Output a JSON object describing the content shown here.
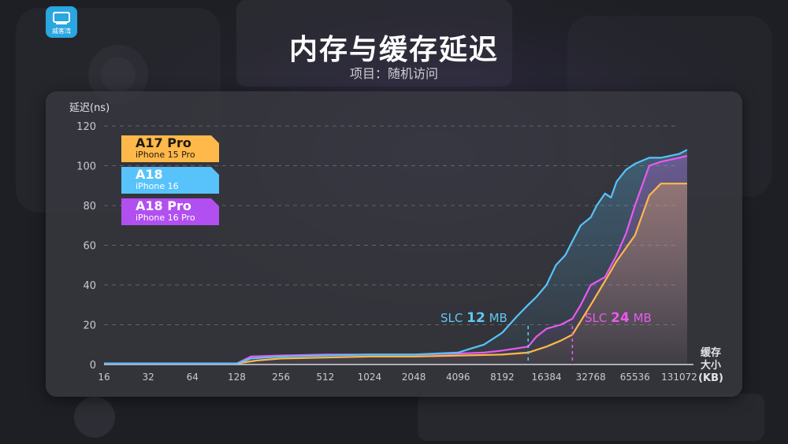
{
  "header": {
    "logo_text": "威客湾",
    "title": "内存与缓存延迟",
    "subtitle": "项目：随机访问"
  },
  "colors": {
    "a17pro": "#ffb84a",
    "a18": "#58c3fb",
    "a18pro": "#e85af0",
    "slc12": "#5fc8f5",
    "slc24": "#e85af0"
  },
  "legend": [
    {
      "name": "A17 Pro",
      "sub": "iPhone 15 Pro"
    },
    {
      "name": "A18",
      "sub": "iPhone 16"
    },
    {
      "name": "A18 Pro",
      "sub": "iPhone 16 Pro"
    }
  ],
  "annotations": {
    "slc12": {
      "prefix": "SLC ",
      "value": "12",
      "suffix": " MB"
    },
    "slc24": {
      "prefix": "SLC ",
      "value": "24",
      "suffix": " MB"
    }
  },
  "chart_data": {
    "type": "line",
    "ylabel": "延迟(ns)",
    "xlabel_lines": [
      "缓存",
      "大小",
      "(KB)"
    ],
    "x_ticks": [
      "16",
      "32",
      "64",
      "128",
      "256",
      "512",
      "1024",
      "2048",
      "4096",
      "8192",
      "16384",
      "32768",
      "65536",
      "131072"
    ],
    "y_ticks": [
      "0",
      "20",
      "40",
      "60",
      "80",
      "100",
      "120"
    ],
    "ylim": [
      0,
      120
    ],
    "x_scale": "log2",
    "xlim": [
      16,
      131072
    ],
    "grid": true,
    "legend_position": "top-left",
    "markers": [
      {
        "label": "SLC 12 MB",
        "x": 12288
      },
      {
        "label": "SLC 24 MB",
        "x": 24576
      }
    ],
    "series": [
      {
        "name": "A17 Pro",
        "sub": "iPhone 15 Pro",
        "x": [
          16,
          128,
          176,
          256,
          512,
          1024,
          2048,
          4096,
          8192,
          12288,
          16384,
          20480,
          24576,
          32768,
          40960,
          49152,
          65536,
          81920,
          98304,
          131072,
          180000
        ],
        "y": [
          0.5,
          0.5,
          2,
          3,
          3.5,
          4,
          4,
          4.5,
          5,
          6,
          9,
          12,
          15,
          30,
          42,
          52,
          65,
          85,
          91,
          91,
          91
        ]
      },
      {
        "name": "A18",
        "sub": "iPhone 16",
        "x": [
          16,
          128,
          160,
          256,
          512,
          1024,
          2048,
          4096,
          5000,
          6144,
          8192,
          10240,
          12288,
          14000,
          16384,
          19000,
          22000,
          24576,
          28000,
          32768,
          36000,
          40960,
          45000,
          49152,
          57000,
          65536,
          81920,
          98304,
          131072,
          180000
        ],
        "y": [
          0.5,
          0.5,
          3,
          4,
          4.5,
          5,
          5,
          6,
          8,
          10,
          16,
          24,
          30,
          34,
          40,
          50,
          55,
          62,
          70,
          74,
          80,
          86,
          84,
          92,
          98,
          101,
          104,
          104,
          106,
          108
        ]
      },
      {
        "name": "A18 Pro",
        "sub": "iPhone 16 Pro",
        "x": [
          16,
          128,
          160,
          256,
          512,
          1024,
          2048,
          4096,
          6144,
          8192,
          12288,
          14000,
          16384,
          20480,
          24576,
          28000,
          32768,
          40960,
          49152,
          57000,
          65536,
          81920,
          98304,
          131072,
          180000
        ],
        "y": [
          0.5,
          0.5,
          4,
          4.5,
          5,
          5,
          5,
          5.5,
          6,
          7,
          9,
          14,
          18,
          20,
          23,
          30,
          40,
          44,
          55,
          66,
          80,
          100,
          102,
          104,
          105
        ]
      }
    ]
  }
}
